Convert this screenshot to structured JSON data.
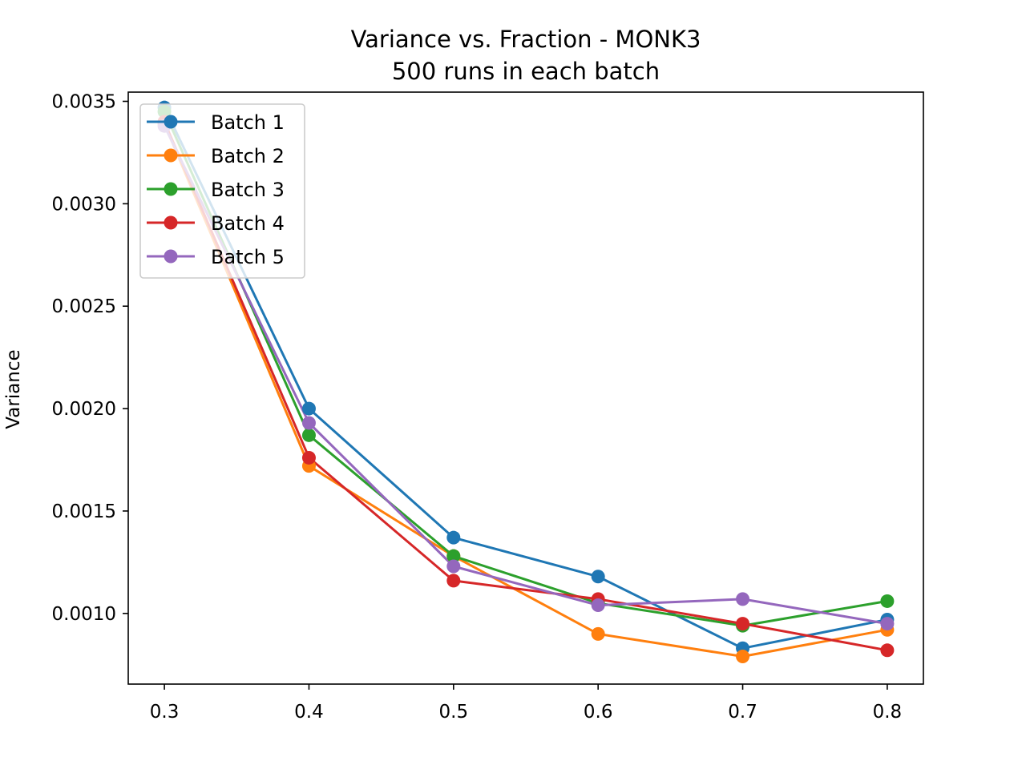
{
  "chart_data": {
    "type": "line",
    "title": "Variance vs. Fraction - MONK3",
    "subtitle": "500 runs in each batch",
    "xlabel": "",
    "ylabel": "Variance",
    "x": [
      0.3,
      0.4,
      0.5,
      0.6,
      0.7,
      0.8
    ],
    "x_tick_labels": [
      "0.3",
      "0.4",
      "0.5",
      "0.6",
      "0.7",
      "0.8"
    ],
    "y_ticks": [
      0.001,
      0.0015,
      0.002,
      0.0025,
      0.003,
      0.0035
    ],
    "y_tick_labels": [
      "0.0010",
      "0.0015",
      "0.0020",
      "0.0025",
      "0.0030",
      "0.0035"
    ],
    "xlim": [
      0.275,
      0.825
    ],
    "ylim": [
      0.000655,
      0.003545
    ],
    "grid": false,
    "legend_position": "top-left",
    "series": [
      {
        "name": "Batch 1",
        "color": "#1f77b4",
        "values": [
          0.00347,
          0.002,
          0.00137,
          0.00118,
          0.00083,
          0.00097
        ]
      },
      {
        "name": "Batch 2",
        "color": "#ff7f0e",
        "values": [
          0.00339,
          0.00172,
          0.00128,
          0.0009,
          0.00079,
          0.00092
        ]
      },
      {
        "name": "Batch 3",
        "color": "#2ca02c",
        "values": [
          0.00345,
          0.00187,
          0.00128,
          0.00105,
          0.00094,
          0.00106
        ]
      },
      {
        "name": "Batch 4",
        "color": "#d62728",
        "values": [
          0.0034,
          0.00176,
          0.00116,
          0.00107,
          0.00095,
          0.00082
        ]
      },
      {
        "name": "Batch 5",
        "color": "#9467bd",
        "values": [
          0.00338,
          0.00193,
          0.00123,
          0.00104,
          0.00107,
          0.00095
        ]
      }
    ]
  }
}
